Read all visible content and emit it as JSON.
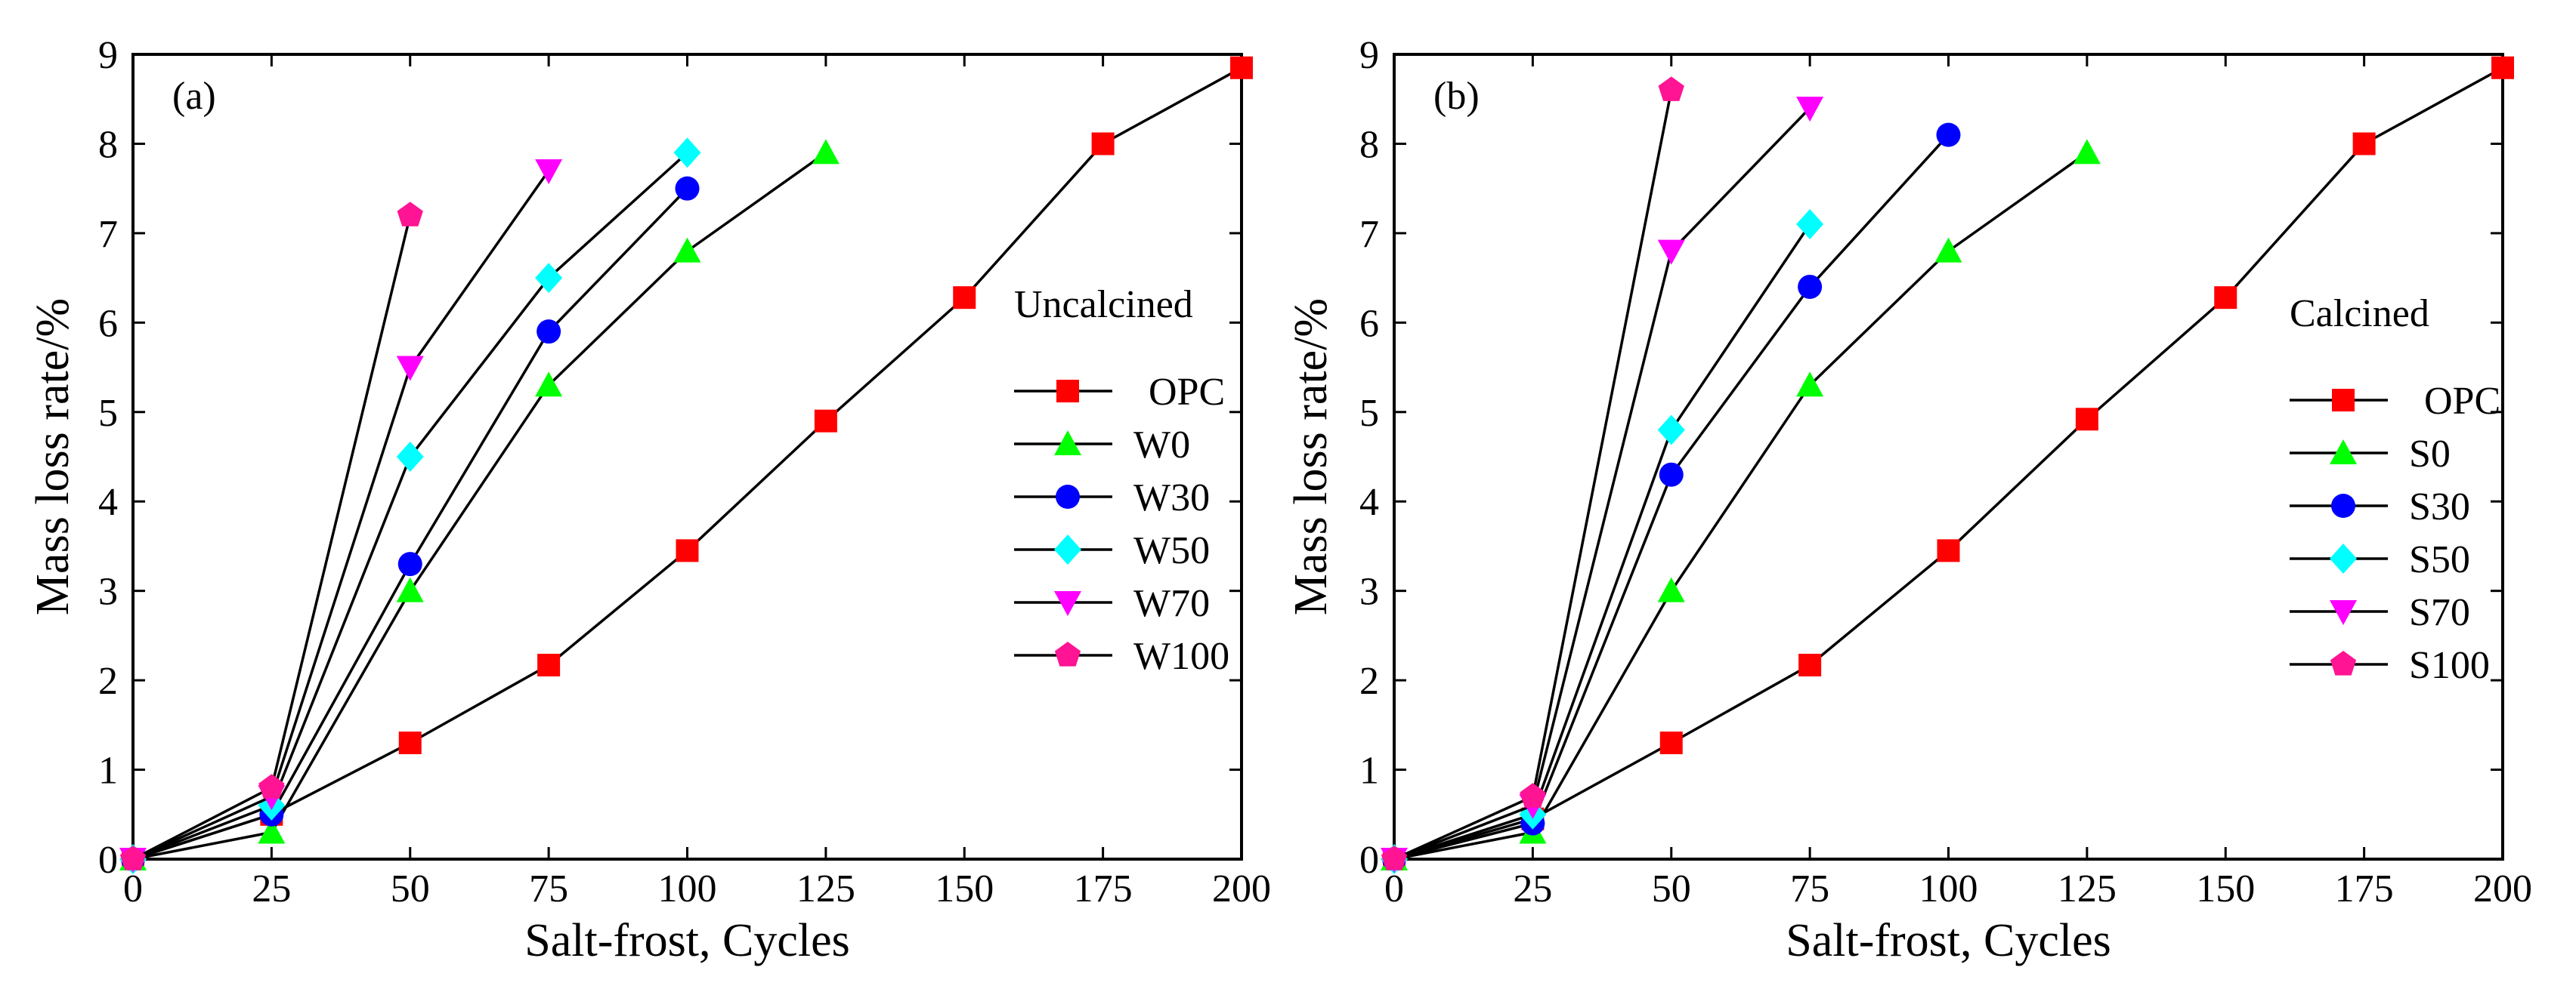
{
  "chart_data": [
    {
      "type": "line",
      "panel_label": "(a)",
      "xlabel": "Salt-frost, Cycles",
      "ylabel": "Mass loss rate/%",
      "xlim": [
        0,
        200
      ],
      "ylim": [
        0,
        9
      ],
      "xticks": [
        0,
        25,
        50,
        75,
        100,
        125,
        150,
        175,
        200
      ],
      "yticks": [
        0,
        1,
        2,
        3,
        4,
        5,
        6,
        7,
        8,
        9
      ],
      "grid": false,
      "legend_title": "Uncalcined",
      "legend_position": "right",
      "series": [
        {
          "name": "OPC",
          "marker": "square",
          "color": "#ff0000",
          "x": [
            0,
            25,
            50,
            75,
            100,
            125,
            150,
            175,
            200
          ],
          "y": [
            0,
            0.5,
            1.3,
            2.17,
            3.45,
            4.9,
            6.28,
            8.0,
            8.85
          ]
        },
        {
          "name": "W0",
          "marker": "triangle-up",
          "color": "#00ff00",
          "x": [
            0,
            25,
            50,
            75,
            100,
            125
          ],
          "y": [
            0,
            0.3,
            3.0,
            5.3,
            6.8,
            7.9
          ]
        },
        {
          "name": "W30",
          "marker": "circle",
          "color": "#0000ff",
          "x": [
            0,
            25,
            50,
            75,
            100
          ],
          "y": [
            0,
            0.5,
            3.3,
            5.9,
            7.5
          ]
        },
        {
          "name": "W50",
          "marker": "diamond",
          "color": "#00ffff",
          "x": [
            0,
            25,
            50,
            75,
            100
          ],
          "y": [
            0,
            0.6,
            4.5,
            6.5,
            7.9
          ]
        },
        {
          "name": "W70",
          "marker": "triangle-down",
          "color": "#ff00ff",
          "x": [
            0,
            25,
            50,
            75
          ],
          "y": [
            0,
            0.7,
            5.5,
            7.7
          ]
        },
        {
          "name": "W100",
          "marker": "pentagon",
          "color": "#ff1493",
          "x": [
            0,
            25,
            50
          ],
          "y": [
            0,
            0.8,
            7.2
          ]
        }
      ]
    },
    {
      "type": "line",
      "panel_label": "(b)",
      "xlabel": "Salt-frost, Cycles",
      "ylabel": "Mass loss rate/%",
      "xlim": [
        0,
        200
      ],
      "ylim": [
        0,
        9
      ],
      "xticks": [
        0,
        25,
        50,
        75,
        100,
        125,
        150,
        175,
        200
      ],
      "yticks": [
        0,
        1,
        2,
        3,
        4,
        5,
        6,
        7,
        8,
        9
      ],
      "grid": false,
      "legend_title": "Calcined",
      "legend_position": "right",
      "series": [
        {
          "name": "OPC",
          "marker": "square",
          "color": "#ff0000",
          "x": [
            0,
            25,
            50,
            75,
            100,
            125,
            150,
            175,
            200
          ],
          "y": [
            0,
            0.45,
            1.3,
            2.17,
            3.45,
            4.92,
            6.28,
            8.0,
            8.85
          ]
        },
        {
          "name": "S0",
          "marker": "triangle-up",
          "color": "#00ff00",
          "x": [
            0,
            25,
            50,
            75,
            100,
            125
          ],
          "y": [
            0,
            0.3,
            3.0,
            5.3,
            6.8,
            7.9
          ]
        },
        {
          "name": "S30",
          "marker": "circle",
          "color": "#0000ff",
          "x": [
            0,
            25,
            50,
            75,
            100
          ],
          "y": [
            0,
            0.4,
            4.3,
            6.4,
            8.1
          ]
        },
        {
          "name": "S50",
          "marker": "diamond",
          "color": "#00ffff",
          "x": [
            0,
            25,
            50,
            75
          ],
          "y": [
            0,
            0.5,
            4.8,
            7.1
          ]
        },
        {
          "name": "S70",
          "marker": "triangle-down",
          "color": "#ff00ff",
          "x": [
            0,
            25,
            50,
            75
          ],
          "y": [
            0,
            0.6,
            6.8,
            8.4
          ]
        },
        {
          "name": "S100",
          "marker": "pentagon",
          "color": "#ff1493",
          "x": [
            0,
            25,
            50
          ],
          "y": [
            0,
            0.7,
            8.6
          ]
        }
      ]
    }
  ]
}
